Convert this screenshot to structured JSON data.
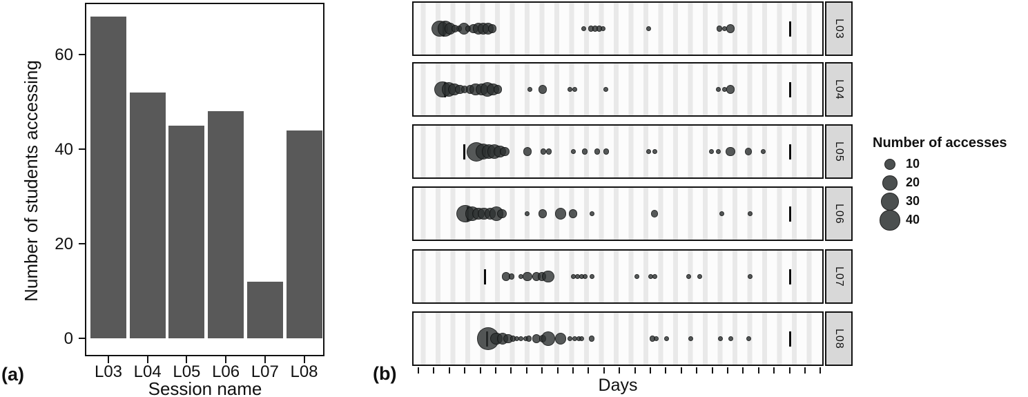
{
  "labels": {
    "panel_a_tag": "(a)",
    "panel_b_tag": "(b)"
  },
  "colors": {
    "bar": "#595959",
    "dot": "#2c3030",
    "strip_bg": "#d8d8d8",
    "border": "#111111"
  },
  "chart_data": [
    {
      "type": "bar",
      "title": "",
      "xlabel": "Session name",
      "ylabel": "Number of students accessing",
      "categories": [
        "L03",
        "L04",
        "L05",
        "L06",
        "L07",
        "L08"
      ],
      "values": [
        68,
        52,
        45,
        48,
        12,
        44
      ],
      "yticks": [
        0,
        20,
        40,
        60
      ],
      "ylim": [
        0,
        71
      ],
      "grid": "off",
      "bar_color": "#595959"
    },
    {
      "type": "scatter",
      "title": "",
      "xlabel": "Days",
      "x_axis_note": "unlabeled day ticks, 27 ticks, 1 unit per tick",
      "x_tick_count": 27,
      "legend_title": "Number of accesses",
      "legend_sizes": [
        10,
        20,
        30,
        40
      ],
      "legend_position": "right",
      "facet_label_side": "right",
      "facets": [
        {
          "label": "L03",
          "marks_u": [
            1.65,
            24.06
          ],
          "points": [
            [
              1.38,
              25
            ],
            [
              1.74,
              21
            ],
            [
              2.05,
              10
            ],
            [
              2.37,
              3
            ],
            [
              2.63,
              2
            ],
            [
              2.95,
              10
            ],
            [
              3.21,
              2
            ],
            [
              3.57,
              7
            ],
            [
              3.88,
              10
            ],
            [
              4.2,
              10
            ],
            [
              4.51,
              10
            ],
            [
              4.78,
              5
            ],
            [
              10.67,
              1
            ],
            [
              11.16,
              2
            ],
            [
              11.43,
              2
            ],
            [
              11.7,
              2
            ],
            [
              11.96,
              1
            ],
            [
              14.87,
              1
            ],
            [
              19.46,
              2
            ],
            [
              19.78,
              1
            ],
            [
              20.18,
              5
            ]
          ]
        },
        {
          "label": "L04",
          "marks_u": [
            1.74,
            24.06
          ],
          "points": [
            [
              1.56,
              25
            ],
            [
              1.96,
              17
            ],
            [
              2.32,
              13
            ],
            [
              2.68,
              7
            ],
            [
              2.99,
              3
            ],
            [
              3.35,
              5
            ],
            [
              3.71,
              13
            ],
            [
              4.11,
              13
            ],
            [
              4.46,
              17
            ],
            [
              4.82,
              13
            ],
            [
              5.13,
              5
            ],
            [
              7.23,
              1
            ],
            [
              8.04,
              5
            ],
            [
              9.78,
              1
            ],
            [
              10.09,
              1
            ],
            [
              12.14,
              1
            ],
            [
              19.38,
              1
            ],
            [
              19.78,
              1
            ],
            [
              20.18,
              5
            ]
          ]
        },
        {
          "label": "L05",
          "marks_u": [
            2.99,
            24.06
          ],
          "points": [
            [
              3.75,
              36
            ],
            [
              4.2,
              21
            ],
            [
              4.55,
              17
            ],
            [
              4.91,
              17
            ],
            [
              5.27,
              13
            ],
            [
              5.58,
              7
            ],
            [
              7.05,
              5
            ],
            [
              8.08,
              2
            ],
            [
              8.44,
              2
            ],
            [
              10.0,
              1
            ],
            [
              10.76,
              2
            ],
            [
              11.56,
              2
            ],
            [
              12.14,
              2
            ],
            [
              14.87,
              1
            ],
            [
              15.27,
              1
            ],
            [
              18.93,
              1
            ],
            [
              19.38,
              1
            ],
            [
              20.18,
              7
            ],
            [
              21.34,
              3
            ],
            [
              22.32,
              1
            ]
          ]
        },
        {
          "label": "L06",
          "marks_u": [
            3.17,
            24.06
          ],
          "points": [
            [
              3.04,
              30
            ],
            [
              3.48,
              17
            ],
            [
              3.88,
              13
            ],
            [
              4.24,
              13
            ],
            [
              4.64,
              10
            ],
            [
              5.04,
              17
            ],
            [
              5.4,
              7
            ],
            [
              7.05,
              1
            ],
            [
              8.04,
              5
            ],
            [
              9.2,
              10
            ],
            [
              10.0,
              5
            ],
            [
              11.21,
              1
            ],
            [
              15.27,
              3
            ],
            [
              19.6,
              1
            ],
            [
              21.43,
              1
            ]
          ]
        },
        {
          "label": "L07",
          "marks_u": [
            4.33,
            24.06
          ],
          "points": [
            [
              5.67,
              5
            ],
            [
              6.03,
              2
            ],
            [
              6.65,
              1
            ],
            [
              7.05,
              7
            ],
            [
              7.63,
              5
            ],
            [
              7.99,
              5
            ],
            [
              8.39,
              13
            ],
            [
              10.0,
              1
            ],
            [
              10.27,
              1
            ],
            [
              10.54,
              1
            ],
            [
              10.8,
              1
            ],
            [
              11.21,
              1
            ],
            [
              14.11,
              1
            ],
            [
              15.04,
              1
            ],
            [
              15.27,
              1
            ],
            [
              17.46,
              1
            ],
            [
              18.21,
              1
            ],
            [
              21.43,
              1
            ]
          ]
        },
        {
          "label": "L08",
          "marks_u": [
            4.42,
            24.06
          ],
          "points": [
            [
              4.51,
              50
            ],
            [
              5.04,
              13
            ],
            [
              5.45,
              10
            ],
            [
              5.8,
              7
            ],
            [
              6.12,
              2
            ],
            [
              6.38,
              1
            ],
            [
              6.65,
              1
            ],
            [
              6.92,
              1
            ],
            [
              7.14,
              2
            ],
            [
              7.63,
              5
            ],
            [
              8.04,
              3
            ],
            [
              8.39,
              17
            ],
            [
              9.2,
              10
            ],
            [
              9.78,
              1
            ],
            [
              10.13,
              1
            ],
            [
              10.36,
              1
            ],
            [
              10.58,
              1
            ],
            [
              11.21,
              2
            ],
            [
              15.13,
              2
            ],
            [
              15.4,
              1
            ],
            [
              16.03,
              1
            ],
            [
              17.63,
              1
            ],
            [
              19.51,
              1
            ],
            [
              20.18,
              1
            ],
            [
              21.38,
              1
            ]
          ]
        }
      ]
    }
  ]
}
